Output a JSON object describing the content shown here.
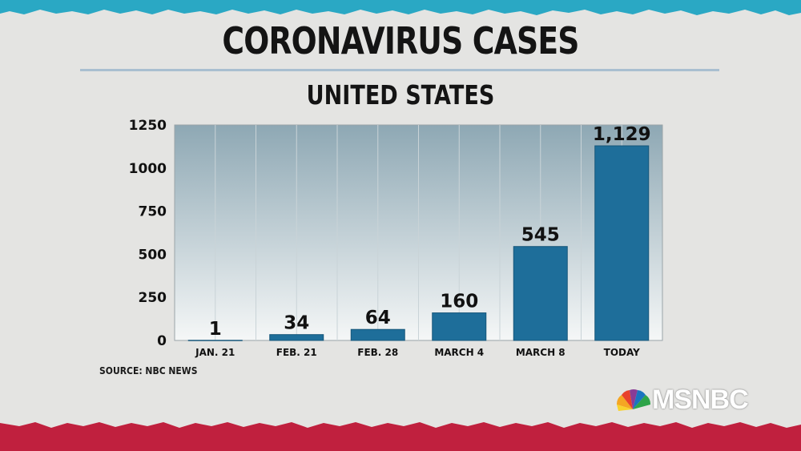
{
  "title": "CORONAVIRUS CASES",
  "subtitle": "UNITED STATES",
  "source": "SOURCE: NBC NEWS",
  "brand": {
    "name": "MSNBC",
    "logo_icon": "nbc-peacock-icon"
  },
  "colors": {
    "bar": "#1e6e9a",
    "plot_top": "#8fa9b5",
    "plot_bottom": "#f4f6f6",
    "torn_top": "#2aa8c4",
    "torn_bottom": "#c0203e"
  },
  "chart_data": {
    "type": "bar",
    "title": "CORONAVIRUS CASES",
    "subtitle": "UNITED STATES",
    "categories": [
      "JAN. 21",
      "FEB. 21",
      "FEB. 28",
      "MARCH 4",
      "MARCH 8",
      "TODAY"
    ],
    "values": [
      1,
      34,
      64,
      160,
      545,
      1129
    ],
    "data_labels": [
      "1",
      "34",
      "64",
      "160",
      "545",
      "1,129"
    ],
    "yticks": [
      "0",
      "250",
      "500",
      "750",
      "1000",
      "1250"
    ],
    "ylim": [
      0,
      1250
    ],
    "grid": "vertical",
    "legend": "none",
    "xlabel": "",
    "ylabel": ""
  }
}
